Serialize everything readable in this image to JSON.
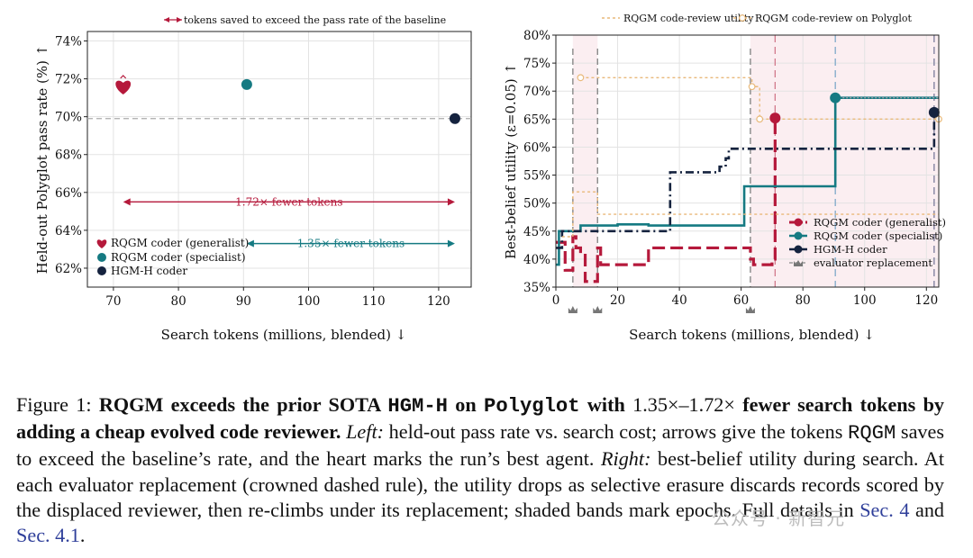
{
  "chart_data": [
    {
      "type": "scatter",
      "title": "",
      "legend_top_text": "tokens saved to exceed the pass rate of the baseline",
      "xlabel": "Search tokens (millions, blended) ↓",
      "ylabel": "Held-out Polyglot pass rate (%) ↑",
      "xlim": [
        66,
        125
      ],
      "ylim": [
        61.0,
        74.5
      ],
      "x_ticks": [
        70,
        80,
        90,
        100,
        110,
        120
      ],
      "y_ticks": [
        62,
        64,
        66,
        68,
        70,
        72,
        74
      ],
      "y_tick_labels": [
        "62%",
        "64%",
        "66%",
        "68%",
        "70%",
        "72%",
        "74%"
      ],
      "grid": true,
      "baseline": {
        "y": 69.9
      },
      "points": [
        {
          "name": "RQGM coder (generalist)",
          "x": 71.5,
          "y": 71.6,
          "marker": "heart",
          "color": "#b5193b"
        },
        {
          "name": "RQGM coder (specialist)",
          "x": 90.5,
          "y": 71.7,
          "marker": "circle",
          "color": "#157a82"
        },
        {
          "name": "HGM-H coder",
          "x": 122.5,
          "y": 69.9,
          "marker": "circle",
          "color": "#15233f"
        }
      ],
      "arrows": [
        {
          "from": 71.5,
          "to": 122.5,
          "y": 65.5,
          "label": "1.72× fewer tokens",
          "color": "#b5193b"
        },
        {
          "from": 90.5,
          "to": 122.5,
          "y": 63.3,
          "label": "1.35× fewer tokens",
          "color": "#157a82"
        }
      ],
      "legend": [
        "RQGM coder (generalist)",
        "RQGM coder (specialist)",
        "HGM-H coder"
      ],
      "legend_position": "bottom-left"
    },
    {
      "type": "line",
      "title": "",
      "xlabel": "Search tokens (millions, blended) ↓",
      "ylabel": "Best-belief utility (ε=0.05) ↑",
      "xlim": [
        0,
        124
      ],
      "ylim": [
        35,
        80
      ],
      "x_ticks": [
        0,
        20,
        40,
        60,
        80,
        100,
        120
      ],
      "y_ticks": [
        35,
        40,
        45,
        50,
        55,
        60,
        65,
        70,
        75,
        80
      ],
      "y_tick_labels": [
        "35%",
        "40%",
        "45%",
        "50%",
        "55%",
        "60%",
        "65%",
        "70%",
        "75%",
        "80%"
      ],
      "grid": true,
      "top_legend": [
        "RQGM code-review utility",
        "RQGM code-review on Polyglot"
      ],
      "legend": [
        "RQGM coder (generalist)",
        "RQGM coder (specialist)",
        "HGM-H coder",
        "evaluator replacement"
      ],
      "legend_position": "lower-right",
      "shaded_epochs": [
        [
          5.5,
          13.5
        ],
        [
          63,
          124
        ]
      ],
      "evaluator_replacements": [
        5.5,
        13.5,
        63
      ],
      "series": [
        {
          "name": "RQGM coder (generalist)",
          "color": "#b5193b",
          "style": "dashed",
          "x": [
            0,
            3,
            5.5,
            6.5,
            8,
            9.5,
            13.5,
            14.5,
            30,
            40,
            62,
            63,
            64,
            68,
            70,
            71
          ],
          "y": [
            43,
            38,
            44,
            42,
            41,
            36,
            42,
            39,
            42,
            42,
            42,
            40,
            39,
            39,
            40,
            65.2
          ]
        },
        {
          "name": "RQGM coder (specialist)",
          "color": "#157a82",
          "style": "solid",
          "x": [
            0,
            1,
            8,
            20,
            30,
            40,
            61,
            90.5,
            124
          ],
          "y": [
            39,
            45,
            46,
            46.2,
            46,
            46,
            53,
            68.8,
            68.8
          ]
        },
        {
          "name": "HGM-H coder",
          "color": "#15233f",
          "style": "dashdot",
          "x": [
            0,
            2,
            37,
            45,
            53,
            55,
            56,
            122.5
          ],
          "y": [
            42,
            45,
            55.5,
            55.5,
            56.5,
            58,
            59.7,
            66.2
          ]
        },
        {
          "name": "RQGM code-review utility",
          "color": "#e9b97a",
          "style": "dotted",
          "x": [
            2,
            5.5,
            13.5,
            40,
            63,
            124
          ],
          "y": [
            44,
            52,
            48,
            48,
            48,
            48
          ]
        },
        {
          "name": "RQGM code-review on Polyglot",
          "color": "#e9b97a",
          "style": "dotted-circle",
          "x": [
            8,
            63.5,
            66,
            124
          ],
          "y": [
            72.4,
            70.8,
            65,
            65
          ]
        }
      ]
    }
  ],
  "caption": {
    "fig_prefix": "Figure 1: ",
    "b1": "RQGM exceeds the prior SOTA ",
    "m1": "HGM-H",
    "b2": " on ",
    "m2": "Polyglot",
    "b3": " with ",
    "n1": "1.35×–1.72×",
    "b4": " fewer search tokens by adding a cheap evolved code reviewer.",
    "left_label": " Left:",
    "t1": " held-out pass rate vs. search cost; arrows give the tokens ",
    "m3": "RQGM",
    "t2": " saves to exceed the baseline’s rate, and the heart marks the run’s best agent. ",
    "right_label": "Right:",
    "t3": " best-belief utility during search. At each evaluator replacement (crowned dashed rule), the utility drops as selective erasure discards records scored by the displaced reviewer, then re-climbs under its replacement; shaded bands mark epochs. Full details in ",
    "ref1": "Sec. 4",
    "t4": " and ",
    "ref2": "Sec. 4.1",
    "t5": "."
  },
  "watermark": "公众号 · 新智元"
}
